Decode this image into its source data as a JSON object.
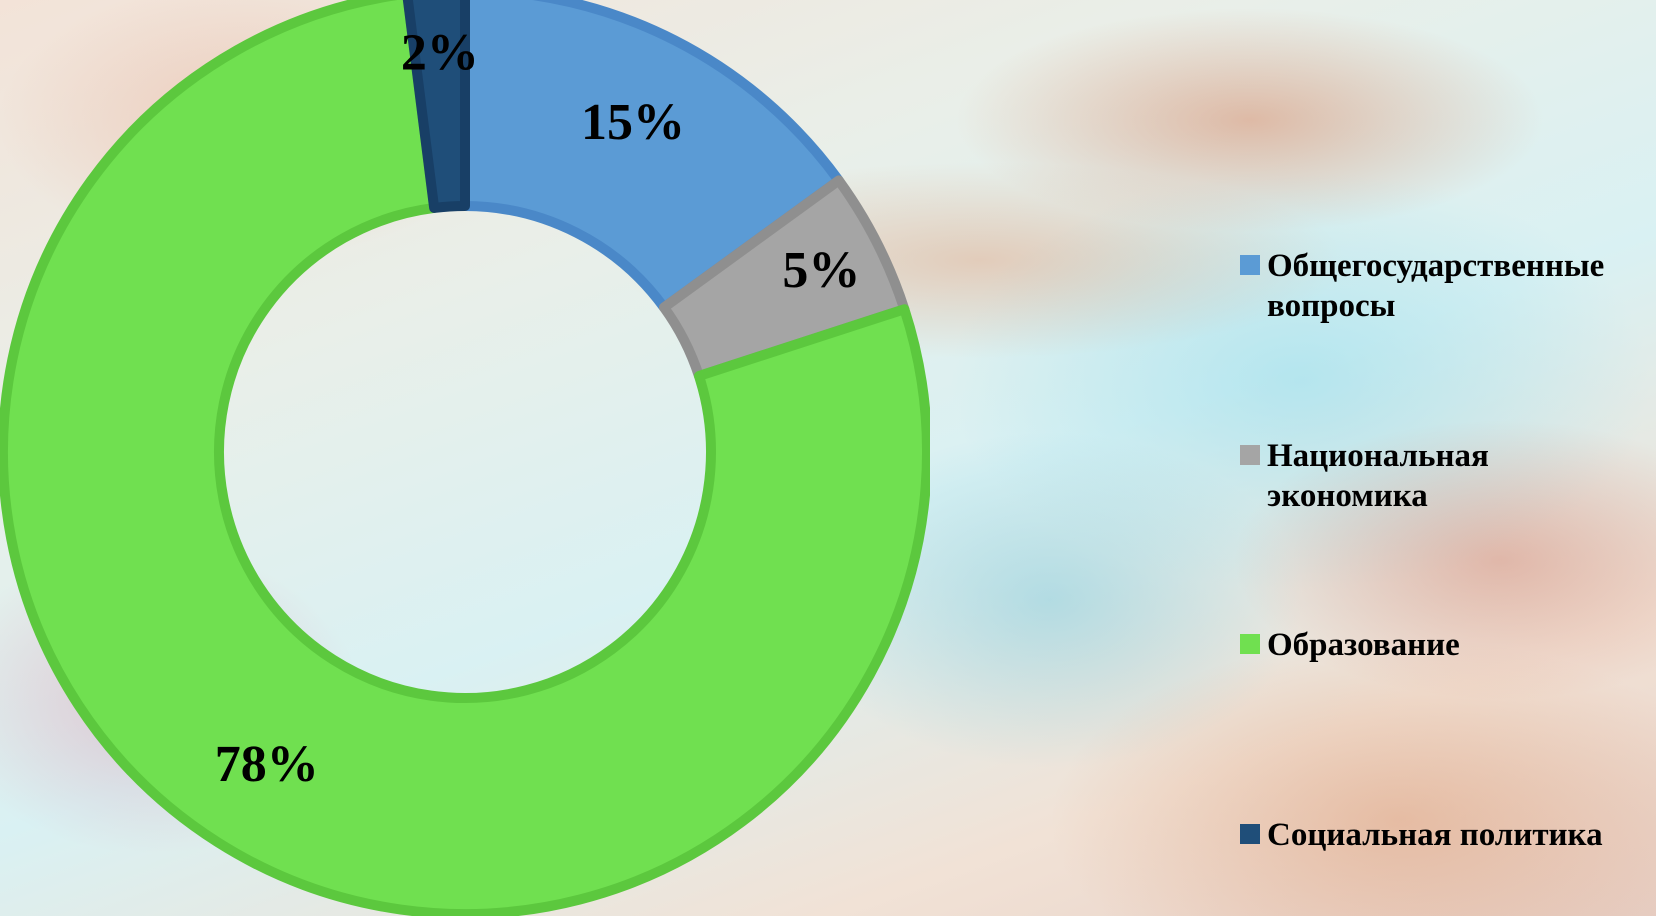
{
  "chart_data": {
    "type": "donut",
    "title": "",
    "legend_position": "right",
    "categories": [
      "Общегосударственные\nвопросы",
      "Национальная\nэкономика",
      "Образование",
      "Социальная политика"
    ],
    "values": [
      15,
      5,
      78,
      2
    ],
    "data_labels": [
      "15%",
      "5%",
      "78%",
      "2%"
    ],
    "colors": [
      "#5b9bd5",
      "#a5a5a5",
      "#70e050",
      "#1f4e79"
    ],
    "edge_colors": [
      "#4a88c8",
      "#8f8f8f",
      "#5cc83e",
      "#183f66"
    ]
  }
}
